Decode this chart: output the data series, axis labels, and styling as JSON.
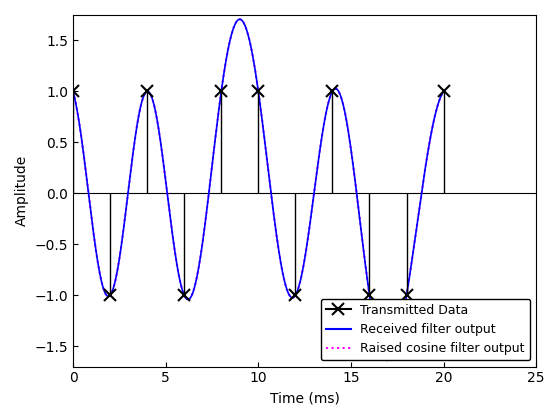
{
  "xlabel": "Time (ms)",
  "ylabel": "Amplitude",
  "xlim": [
    0,
    25
  ],
  "ylim": [
    -1.7,
    1.75
  ],
  "xticks": [
    0,
    5,
    10,
    15,
    20,
    25
  ],
  "yticks": [
    -1.5,
    -1.0,
    -0.5,
    0,
    0.5,
    1.0,
    1.5
  ],
  "stem_times": [
    0,
    2,
    4,
    6,
    8,
    10,
    12,
    14,
    16,
    18,
    20
  ],
  "stem_values": [
    1,
    -1,
    1,
    -1,
    1,
    1,
    -1,
    1,
    -1,
    -1,
    1
  ],
  "symbol_period": 2.0,
  "rolloff": 0.35,
  "oversampling": 200,
  "line_color": "#0000ff",
  "dotted_color": "#ff00ff",
  "stem_color": "#000000",
  "legend_loc": "lower right",
  "fig_width": 5.6,
  "fig_height": 4.2,
  "dpi": 100
}
